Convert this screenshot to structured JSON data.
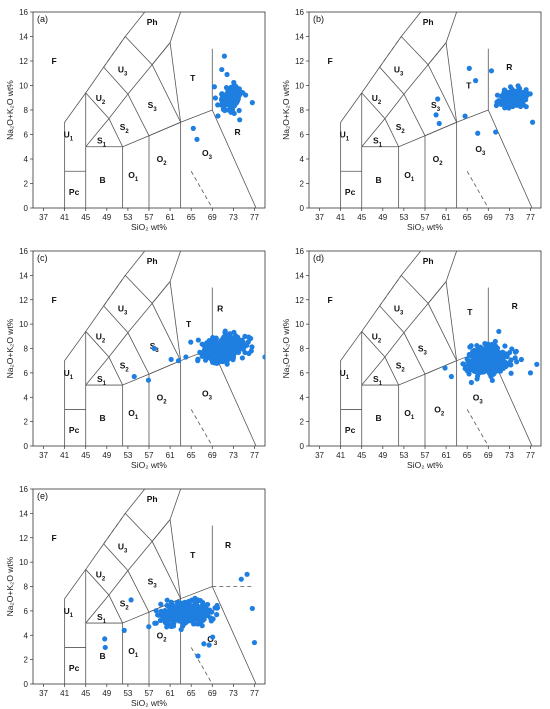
{
  "figure": {
    "xlabel": "SiO₂ wt%",
    "ylabel": "Na₂O+K₂O wt%",
    "point_color": "#1f7fe0",
    "line_color": "#555555"
  },
  "chart_data": [
    {
      "type": "scatter",
      "panel_label": "(a)",
      "xlabel": "SiO₂ wt%",
      "ylabel": "Na₂O+K₂O wt%",
      "xlim": [
        35,
        79
      ],
      "ylim": [
        0,
        16
      ],
      "xticks": [
        37,
        41,
        45,
        49,
        53,
        57,
        61,
        65,
        69,
        73,
        77
      ],
      "yticks": [
        0,
        2,
        4,
        6,
        8,
        10,
        12,
        14,
        16
      ],
      "scatter_cluster": {
        "x_center": 72.5,
        "y_center": 9.0,
        "x_spread": 2.2,
        "y_spread": 0.9,
        "count": 110
      },
      "scatter_points": [
        [
          65.4,
          6.5
        ],
        [
          66.1,
          5.6
        ],
        [
          71.3,
          12.4
        ],
        [
          70.8,
          11.3
        ],
        [
          69.4,
          9.9
        ],
        [
          71.8,
          10.9
        ],
        [
          74.2,
          7.2
        ],
        [
          72.1,
          8.0
        ],
        [
          76.6,
          8.6
        ]
      ]
    },
    {
      "type": "scatter",
      "panel_label": "(b)",
      "xlabel": "SiO₂ wt%",
      "ylabel": "Na₂O+K₂O wt%",
      "xlim": [
        35,
        79
      ],
      "ylim": [
        0,
        16
      ],
      "xticks": [
        37,
        41,
        45,
        49,
        53,
        57,
        61,
        65,
        69,
        73,
        77
      ],
      "yticks": [
        0,
        2,
        4,
        6,
        8,
        10,
        12,
        14,
        16
      ],
      "scatter_cluster": {
        "x_center": 73.8,
        "y_center": 8.9,
        "x_spread": 2.4,
        "y_spread": 0.7,
        "count": 170
      },
      "scatter_points": [
        [
          59.4,
          8.9
        ],
        [
          59.1,
          7.6
        ],
        [
          59.7,
          6.9
        ],
        [
          64.6,
          7.5
        ],
        [
          65.4,
          11.4
        ],
        [
          66.6,
          10.4
        ],
        [
          67.0,
          6.1
        ],
        [
          69.6,
          11.2
        ],
        [
          70.4,
          6.2
        ],
        [
          77.4,
          7.0
        ]
      ]
    },
    {
      "type": "scatter",
      "panel_label": "(c)",
      "xlabel": "SiO₂ wt%",
      "ylabel": "Na₂O+K₂O wt%",
      "xlim": [
        35,
        79
      ],
      "ylim": [
        0,
        16
      ],
      "xticks": [
        37,
        41,
        45,
        49,
        53,
        57,
        61,
        65,
        69,
        73,
        77
      ],
      "yticks": [
        0,
        2,
        4,
        6,
        8,
        10,
        12,
        14,
        16
      ],
      "scatter_cluster": {
        "x_center": 71.0,
        "y_center": 8.0,
        "x_spread": 3.4,
        "y_spread": 0.85,
        "count": 620
      },
      "scatter_points": [
        [
          58.0,
          8.0
        ],
        [
          56.9,
          5.4
        ],
        [
          54.2,
          5.7
        ],
        [
          61.2,
          7.1
        ],
        [
          62.6,
          7.0
        ],
        [
          64.0,
          7.3
        ],
        [
          79.0,
          7.3
        ]
      ]
    },
    {
      "type": "scatter",
      "panel_label": "(d)",
      "xlabel": "SiO₂ wt%",
      "ylabel": "Na₂O+K₂O wt%",
      "xlim": [
        35,
        79
      ],
      "ylim": [
        0,
        16
      ],
      "xticks": [
        37,
        41,
        45,
        49,
        53,
        57,
        61,
        65,
        69,
        73,
        77
      ],
      "yticks": [
        0,
        2,
        4,
        6,
        8,
        10,
        12,
        14,
        16
      ],
      "scatter_cluster": {
        "x_center": 69.0,
        "y_center": 7.0,
        "x_spread": 3.2,
        "y_spread": 0.95,
        "count": 560
      },
      "scatter_points": [
        [
          60.8,
          6.4
        ],
        [
          62.0,
          5.7
        ],
        [
          78.2,
          6.7
        ],
        [
          77.0,
          6.0
        ],
        [
          71.0,
          9.4
        ]
      ]
    },
    {
      "type": "scatter",
      "panel_label": "(e)",
      "xlabel": "SiO₂ wt%",
      "ylabel": "Na₂O+K₂O wt%",
      "xlim": [
        35,
        79
      ],
      "ylim": [
        0,
        16
      ],
      "xticks": [
        37,
        41,
        45,
        49,
        53,
        57,
        61,
        65,
        69,
        73,
        77
      ],
      "yticks": [
        0,
        2,
        4,
        6,
        8,
        10,
        12,
        14,
        16
      ],
      "scatter_cluster": {
        "x_center": 64.0,
        "y_center": 5.8,
        "x_spread": 4.8,
        "y_spread": 0.9,
        "count": 320
      },
      "scatter_points": [
        [
          48.7,
          3.0
        ],
        [
          48.6,
          3.7
        ],
        [
          52.3,
          4.4
        ],
        [
          53.6,
          6.9
        ],
        [
          66.3,
          2.3
        ],
        [
          67.4,
          3.3
        ],
        [
          68.4,
          3.2
        ],
        [
          75.6,
          9.0
        ],
        [
          76.6,
          6.2
        ],
        [
          77.0,
          3.4
        ],
        [
          74.5,
          8.6
        ]
      ]
    }
  ],
  "fields": [
    {
      "name": "F",
      "sub": "",
      "x": 39.0,
      "y": 12.0
    },
    {
      "name": "Ph",
      "sub": "",
      "x": 57.6,
      "y": 15.2
    },
    {
      "name": "U",
      "sub": "3",
      "x": 52.0,
      "y": 11.3
    },
    {
      "name": "U",
      "sub": "2",
      "x": 47.8,
      "y": 9.0
    },
    {
      "name": "U",
      "sub": "1",
      "x": 41.7,
      "y": 6.0
    },
    {
      "name": "S",
      "sub": "3",
      "x": 57.6,
      "y": 8.4
    },
    {
      "name": "S",
      "sub": "2",
      "x": 52.3,
      "y": 6.6
    },
    {
      "name": "S",
      "sub": "1",
      "x": 48.0,
      "y": 5.5
    },
    {
      "name": "T",
      "sub": "",
      "x": 65.3,
      "y": 10.6
    },
    {
      "name": "R",
      "sub": "",
      "x": 73.8,
      "y": 6.2
    },
    {
      "name": "Pc",
      "sub": "",
      "x": 42.8,
      "y": 1.3
    },
    {
      "name": "B",
      "sub": "",
      "x": 48.2,
      "y": 2.3
    },
    {
      "name": "O",
      "sub": "1",
      "x": 54.0,
      "y": 2.7
    },
    {
      "name": "O",
      "sub": "2",
      "x": 59.4,
      "y": 4.0
    },
    {
      "name": "O",
      "sub": "3",
      "x": 68.0,
      "y": 4.5
    }
  ],
  "panel_field_overrides": {
    "(b)": {
      "S3": [
        59.0,
        8.4
      ],
      "T": [
        65.3,
        10.0
      ],
      "R": [
        73.0,
        11.5
      ],
      "O3": [
        67.5,
        4.8
      ]
    },
    "(c)": {
      "S3": [
        58.0,
        8.2
      ],
      "T": [
        64.5,
        10.0
      ],
      "R": [
        70.5,
        11.3
      ],
      "O3": [
        68.0,
        4.3
      ]
    },
    "(d)": {
      "S3": [
        56.5,
        8.0
      ],
      "T": [
        65.5,
        11.0
      ],
      "R": [
        74.0,
        11.5
      ],
      "O3": [
        67.0,
        4.0
      ],
      "O2": [
        59.7,
        3.0
      ]
    },
    "(e)": {
      "R": [
        72.0,
        11.4
      ],
      "O3": [
        69.0,
        3.7
      ]
    }
  }
}
